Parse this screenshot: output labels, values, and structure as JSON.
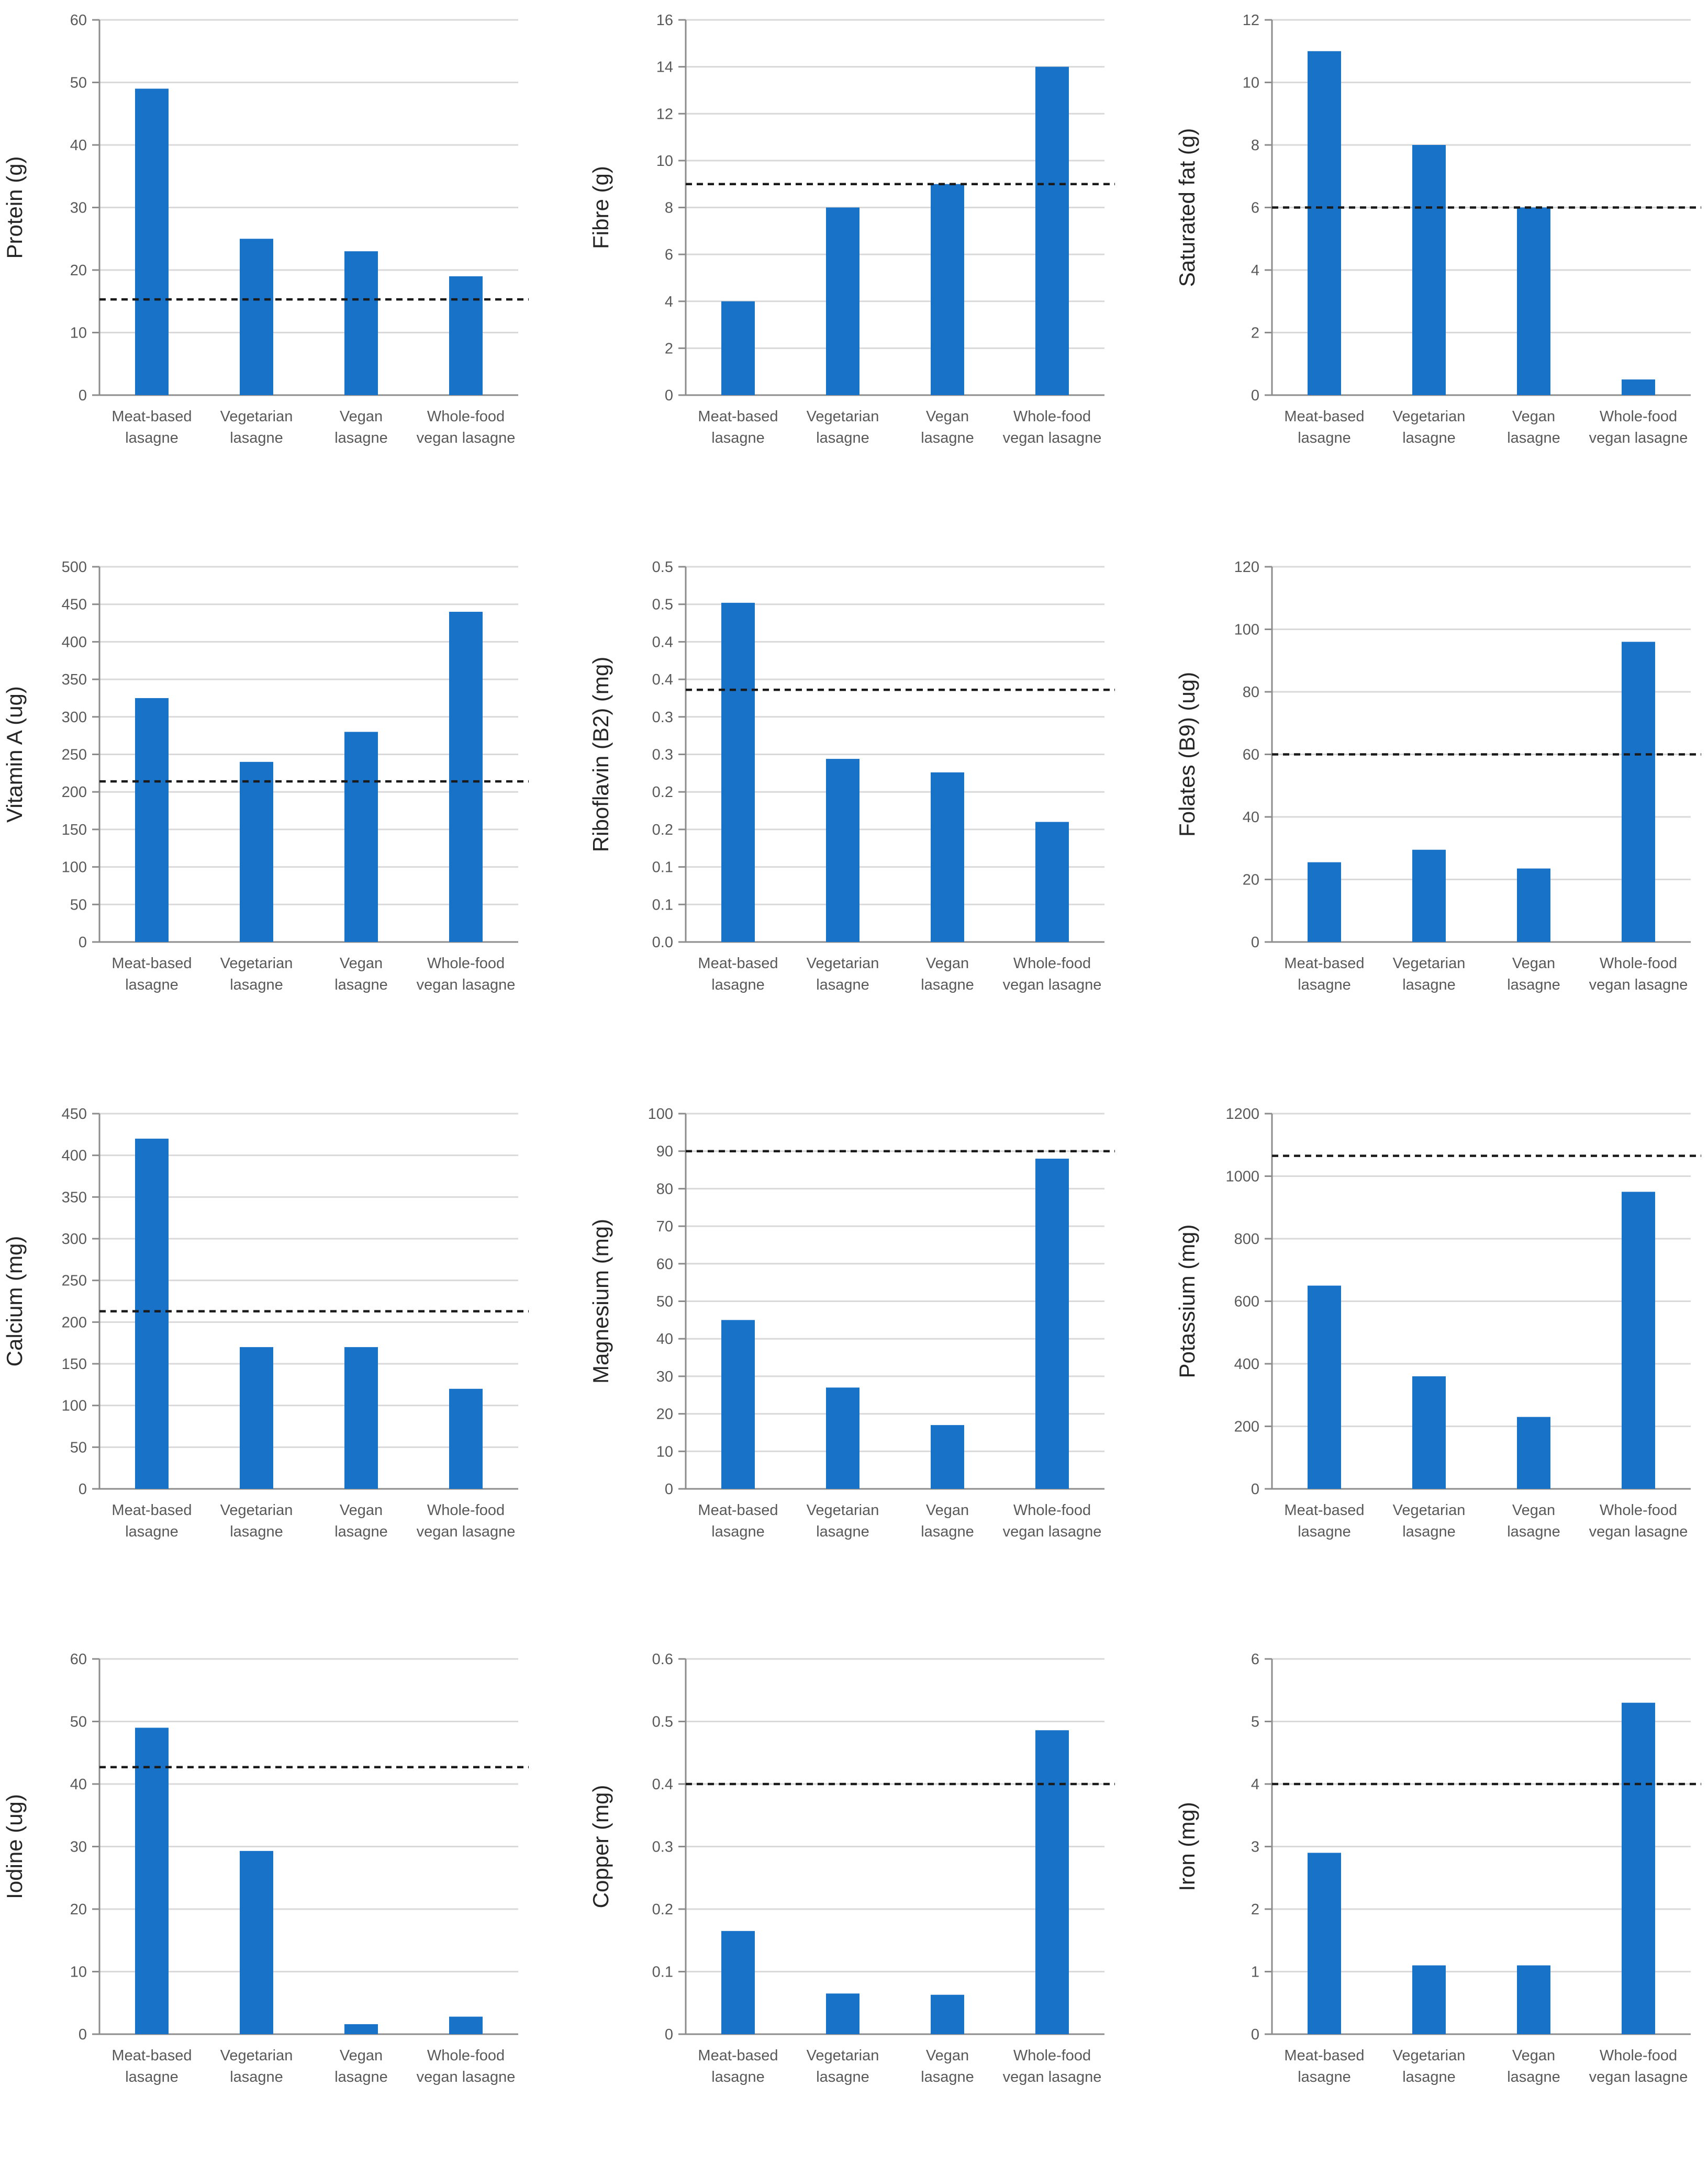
{
  "colors": {
    "bar": "#1872C8",
    "reference_line": "#1a1a1a",
    "grid": "#d9d9d9",
    "axis": "#8c8c8c"
  },
  "chart_data": [
    {
      "type": "bar",
      "ylabel": "Protein (g)",
      "categories": [
        [
          "Meat-based",
          "lasagne"
        ],
        [
          "Vegetarian",
          "lasagne"
        ],
        [
          "Vegan",
          "lasagne"
        ],
        [
          "Whole-food",
          "vegan lasagne"
        ]
      ],
      "values": [
        49,
        25,
        23,
        19
      ],
      "ylim": [
        0,
        60
      ],
      "yticks": [
        0,
        10,
        20,
        30,
        40,
        50,
        60
      ],
      "ytick_labels": [
        "0",
        "10",
        "20",
        "30",
        "40",
        "50",
        "60"
      ],
      "reference_line": 15.3,
      "grid": true
    },
    {
      "type": "bar",
      "ylabel": "Fibre (g)",
      "categories": [
        [
          "Meat-based",
          "lasagne"
        ],
        [
          "Vegetarian",
          "lasagne"
        ],
        [
          "Vegan",
          "lasagne"
        ],
        [
          "Whole-food",
          "vegan lasagne"
        ]
      ],
      "values": [
        4,
        8,
        9,
        14
      ],
      "ylim": [
        0,
        16
      ],
      "yticks": [
        0,
        2,
        4,
        6,
        8,
        10,
        12,
        14,
        16
      ],
      "ytick_labels": [
        "0",
        "2",
        "4",
        "6",
        "8",
        "10",
        "12",
        "14",
        "16"
      ],
      "reference_line": 9,
      "grid": true
    },
    {
      "type": "bar",
      "ylabel": "Saturated fat (g)",
      "categories": [
        [
          "Meat-based",
          "lasagne"
        ],
        [
          "Vegetarian",
          "lasagne"
        ],
        [
          "Vegan",
          "lasagne"
        ],
        [
          "Whole-food",
          "vegan lasagne"
        ]
      ],
      "values": [
        11,
        8,
        6,
        0.5
      ],
      "ylim": [
        0,
        12
      ],
      "yticks": [
        0,
        2,
        4,
        6,
        8,
        10,
        12
      ],
      "ytick_labels": [
        "0",
        "2",
        "4",
        "6",
        "8",
        "10",
        "12"
      ],
      "reference_line": 6,
      "grid": true
    },
    {
      "type": "bar",
      "ylabel": "Vitamin A (ug)",
      "categories": [
        [
          "Meat-based",
          "lasagne"
        ],
        [
          "Vegetarian",
          "lasagne"
        ],
        [
          "Vegan",
          "lasagne"
        ],
        [
          "Whole-food",
          "vegan lasagne"
        ]
      ],
      "values": [
        325,
        240,
        280,
        440
      ],
      "ylim": [
        0,
        500
      ],
      "yticks": [
        0,
        50,
        100,
        150,
        200,
        250,
        300,
        350,
        400,
        450,
        500
      ],
      "ytick_labels": [
        "0",
        "50",
        "100",
        "150",
        "200",
        "250",
        "300",
        "350",
        "400",
        "450",
        "500"
      ],
      "reference_line": 214,
      "grid": true
    },
    {
      "type": "bar",
      "ylabel": "Riboflavin (B2) (mg)",
      "categories": [
        [
          "Meat-based",
          "lasagne"
        ],
        [
          "Vegetarian",
          "lasagne"
        ],
        [
          "Vegan",
          "lasagne"
        ],
        [
          "Whole-food",
          "vegan lasagne"
        ]
      ],
      "values": [
        0.452,
        0.244,
        0.226,
        0.16
      ],
      "ylim": [
        0,
        0.5
      ],
      "yticks": [
        0,
        0.05,
        0.1,
        0.15,
        0.2,
        0.25,
        0.3,
        0.35,
        0.4,
        0.45,
        0.5
      ],
      "ytick_labels": [
        "0.0",
        "0.1",
        "0.1",
        "0.2",
        "0.2",
        "0.3",
        "0.3",
        "0.4",
        "0.4",
        "0.5",
        "0.5"
      ],
      "reference_line": 0.336,
      "grid": true
    },
    {
      "type": "bar",
      "ylabel": "Folates (B9)  (ug)",
      "categories": [
        [
          "Meat-based",
          "lasagne"
        ],
        [
          "Vegetarian",
          "lasagne"
        ],
        [
          "Vegan",
          "lasagne"
        ],
        [
          "Whole-food",
          "vegan lasagne"
        ]
      ],
      "values": [
        25.5,
        29.5,
        23.5,
        96
      ],
      "ylim": [
        0,
        120
      ],
      "yticks": [
        0,
        20,
        40,
        60,
        80,
        100,
        120
      ],
      "ytick_labels": [
        "0",
        "20",
        "40",
        "60",
        "80",
        "100",
        "120"
      ],
      "reference_line": 60,
      "grid": true
    },
    {
      "type": "bar",
      "ylabel": "Calcium (mg)",
      "categories": [
        [
          "Meat-based",
          "lasagne"
        ],
        [
          "Vegetarian",
          "lasagne"
        ],
        [
          "Vegan",
          "lasagne"
        ],
        [
          "Whole-food",
          "vegan lasagne"
        ]
      ],
      "values": [
        420,
        170,
        170,
        120
      ],
      "ylim": [
        0,
        450
      ],
      "yticks": [
        0,
        50,
        100,
        150,
        200,
        250,
        300,
        350,
        400,
        450
      ],
      "ytick_labels": [
        "0",
        "50",
        "100",
        "150",
        "200",
        "250",
        "300",
        "350",
        "400",
        "450"
      ],
      "reference_line": 213,
      "grid": true
    },
    {
      "type": "bar",
      "ylabel": "Magnesium (mg)",
      "categories": [
        [
          "Meat-based",
          "lasagne"
        ],
        [
          "Vegetarian",
          "lasagne"
        ],
        [
          "Vegan",
          "lasagne"
        ],
        [
          "Whole-food",
          "vegan lasagne"
        ]
      ],
      "values": [
        45,
        27,
        17,
        88
      ],
      "ylim": [
        0,
        100
      ],
      "yticks": [
        0,
        10,
        20,
        30,
        40,
        50,
        60,
        70,
        80,
        90,
        100
      ],
      "ytick_labels": [
        "0",
        "10",
        "20",
        "30",
        "40",
        "50",
        "60",
        "70",
        "80",
        "90",
        "100"
      ],
      "reference_line": 90,
      "grid": true
    },
    {
      "type": "bar",
      "ylabel": "Potassium (mg)",
      "categories": [
        [
          "Meat-based",
          "lasagne"
        ],
        [
          "Vegetarian",
          "lasagne"
        ],
        [
          "Vegan",
          "lasagne"
        ],
        [
          "Whole-food",
          "vegan lasagne"
        ]
      ],
      "values": [
        650,
        360,
        230,
        950
      ],
      "ylim": [
        0,
        1200
      ],
      "yticks": [
        0,
        200,
        400,
        600,
        800,
        1000,
        1200
      ],
      "ytick_labels": [
        "0",
        "200",
        "400",
        "600",
        "800",
        "1000",
        "1200"
      ],
      "reference_line": 1065,
      "grid": true
    },
    {
      "type": "bar",
      "ylabel": "Iodine (ug)",
      "categories": [
        [
          "Meat-based",
          "lasagne"
        ],
        [
          "Vegetarian",
          "lasagne"
        ],
        [
          "Vegan",
          "lasagne"
        ],
        [
          "Whole-food",
          "vegan lasagne"
        ]
      ],
      "values": [
        49,
        29.3,
        1.6,
        2.8
      ],
      "ylim": [
        0,
        60
      ],
      "yticks": [
        0,
        10,
        20,
        30,
        40,
        50,
        60
      ],
      "ytick_labels": [
        "0",
        "10",
        "20",
        "30",
        "40",
        "50",
        "60"
      ],
      "reference_line": 42.7,
      "grid": true
    },
    {
      "type": "bar",
      "ylabel": "Copper (mg)",
      "categories": [
        [
          "Meat-based",
          "lasagne"
        ],
        [
          "Vegetarian",
          "lasagne"
        ],
        [
          "Vegan",
          "lasagne"
        ],
        [
          "Whole-food",
          "vegan lasagne"
        ]
      ],
      "values": [
        0.165,
        0.065,
        0.063,
        0.486
      ],
      "ylim": [
        0,
        0.6
      ],
      "yticks": [
        0,
        0.1,
        0.2,
        0.3,
        0.4,
        0.5,
        0.6
      ],
      "ytick_labels": [
        "0",
        "0.1",
        "0.2",
        "0.3",
        "0.4",
        "0.5",
        "0.6"
      ],
      "reference_line": 0.4,
      "grid": true
    },
    {
      "type": "bar",
      "ylabel": "Iron (mg)",
      "categories": [
        [
          "Meat-based",
          "lasagne"
        ],
        [
          "Vegetarian",
          "lasagne"
        ],
        [
          "Vegan",
          "lasagne"
        ],
        [
          "Whole-food",
          "vegan lasagne"
        ]
      ],
      "values": [
        2.9,
        1.1,
        1.1,
        5.3
      ],
      "ylim": [
        0,
        6
      ],
      "yticks": [
        0,
        1,
        2,
        3,
        4,
        5,
        6
      ],
      "ytick_labels": [
        "0",
        "1",
        "2",
        "3",
        "4",
        "5",
        "6"
      ],
      "reference_line": 4,
      "grid": true
    }
  ]
}
